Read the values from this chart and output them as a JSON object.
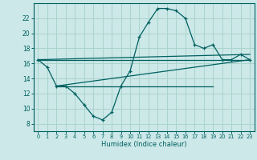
{
  "xlabel": "Humidex (Indice chaleur)",
  "background_color": "#cce8e8",
  "grid_color": "#aad4cc",
  "line_color": "#006060",
  "x_values": [
    0,
    1,
    2,
    3,
    4,
    5,
    6,
    7,
    8,
    9,
    10,
    11,
    12,
    13,
    14,
    15,
    16,
    17,
    18,
    19,
    20,
    21,
    22,
    23
  ],
  "curve1": [
    16.5,
    15.5,
    13.0,
    13.0,
    12.0,
    10.5,
    9.0,
    8.5,
    9.5,
    13.0,
    15.0,
    19.5,
    21.5,
    23.3,
    23.3,
    23.0,
    22.0,
    18.5,
    18.0,
    18.5,
    16.5,
    16.5,
    17.2,
    16.5
  ],
  "straight_lines": [
    {
      "x": [
        0,
        23
      ],
      "y": [
        16.5,
        16.5
      ]
    },
    {
      "x": [
        2,
        19
      ],
      "y": [
        13.0,
        13.0
      ]
    },
    {
      "x": [
        0,
        23
      ],
      "y": [
        16.5,
        17.2
      ]
    },
    {
      "x": [
        2,
        23
      ],
      "y": [
        13.0,
        16.5
      ]
    }
  ],
  "ylim": [
    7,
    24
  ],
  "xlim": [
    -0.5,
    23.5
  ],
  "yticks": [
    8,
    10,
    12,
    14,
    16,
    18,
    20,
    22
  ],
  "xticks": [
    0,
    1,
    2,
    3,
    4,
    5,
    6,
    7,
    8,
    9,
    10,
    11,
    12,
    13,
    14,
    15,
    16,
    17,
    18,
    19,
    20,
    21,
    22,
    23
  ]
}
